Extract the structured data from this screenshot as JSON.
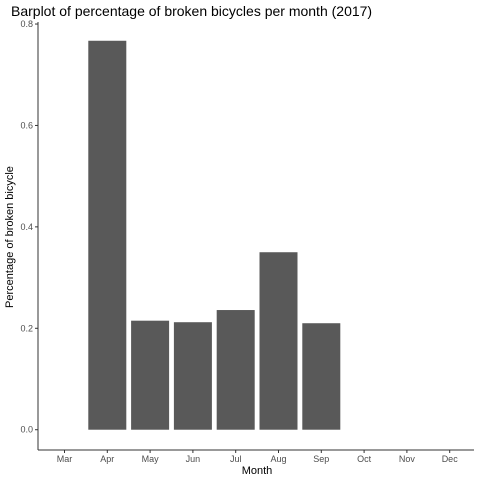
{
  "chart_data": {
    "type": "bar",
    "title": "Barplot of percentage of broken bicycles per month (2017)",
    "xlabel": "Month",
    "ylabel": "Percentage of broken bicycle",
    "categories": [
      "Mar",
      "Apr",
      "May",
      "Jun",
      "Jul",
      "Aug",
      "Sep",
      "Oct",
      "Nov",
      "Dec"
    ],
    "values": [
      null,
      0.767,
      0.215,
      0.212,
      0.236,
      0.35,
      0.21,
      null,
      null,
      null
    ],
    "ylim": [
      -0.04,
      0.804
    ],
    "yticks": [
      0.0,
      0.2,
      0.4,
      0.6,
      0.8
    ],
    "ytick_labels": [
      "0.0",
      "0.2",
      "0.4",
      "0.6",
      "0.8"
    ],
    "grid": false,
    "legend": "none",
    "bar_color": "#595959",
    "axis_color": "#333333",
    "background": "#ffffff"
  }
}
